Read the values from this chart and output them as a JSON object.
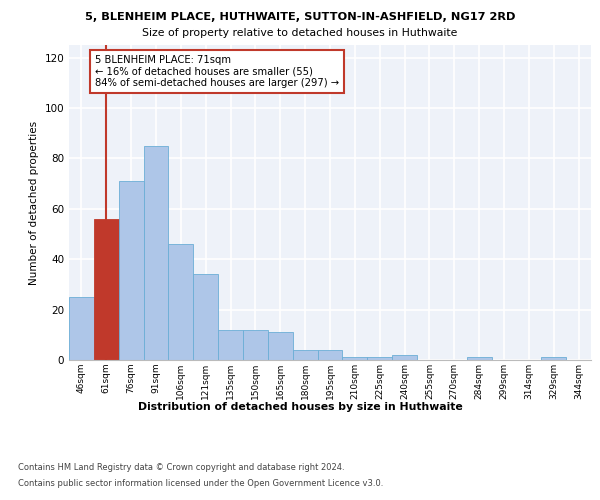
{
  "title": "5, BLENHEIM PLACE, HUTHWAITE, SUTTON-IN-ASHFIELD, NG17 2RD",
  "subtitle": "Size of property relative to detached houses in Huthwaite",
  "xlabel": "Distribution of detached houses by size in Huthwaite",
  "ylabel": "Number of detached properties",
  "bins": [
    "46sqm",
    "61sqm",
    "76sqm",
    "91sqm",
    "106sqm",
    "121sqm",
    "135sqm",
    "150sqm",
    "165sqm",
    "180sqm",
    "195sqm",
    "210sqm",
    "225sqm",
    "240sqm",
    "255sqm",
    "270sqm",
    "284sqm",
    "299sqm",
    "314sqm",
    "329sqm",
    "344sqm"
  ],
  "values": [
    25,
    56,
    71,
    85,
    46,
    34,
    12,
    12,
    11,
    4,
    4,
    1,
    1,
    2,
    0,
    0,
    1,
    0,
    0,
    1,
    0
  ],
  "bar_color": "#aec6e8",
  "bar_edge_color": "#6baed6",
  "highlight_bar_index": 1,
  "highlight_color": "#c0392b",
  "property_line_x": 1,
  "annotation_text": "5 BLENHEIM PLACE: 71sqm\n← 16% of detached houses are smaller (55)\n84% of semi-detached houses are larger (297) →",
  "annotation_box_color": "#c0392b",
  "ylim": [
    0,
    125
  ],
  "yticks": [
    0,
    20,
    40,
    60,
    80,
    100,
    120
  ],
  "bg_color": "#eef2f9",
  "grid_color": "#ffffff",
  "footer1": "Contains HM Land Registry data © Crown copyright and database right 2024.",
  "footer2": "Contains public sector information licensed under the Open Government Licence v3.0."
}
